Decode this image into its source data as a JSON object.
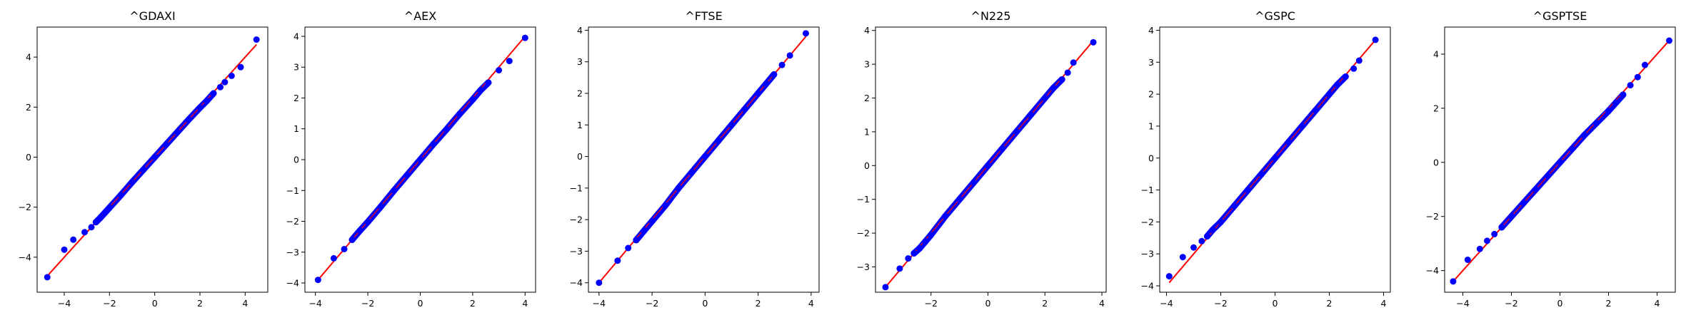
{
  "chart_data": [
    {
      "type": "scatter",
      "title": "^GDAXI",
      "xlim": [
        -5.2,
        5.0
      ],
      "ylim": [
        -5.4,
        5.2
      ],
      "xticks": [
        -4,
        -2,
        0,
        2,
        4
      ],
      "yticks": [
        -4,
        -2,
        0,
        2,
        4
      ],
      "xtick_labels": [
        "−4",
        "−2",
        "0",
        "2",
        "4"
      ],
      "ytick_labels": [
        "−4",
        "−2",
        "0",
        "2",
        "4"
      ],
      "reference_line": {
        "x": [
          -4.75,
          4.5
        ],
        "y": [
          -4.75,
          4.5
        ],
        "color": "#ff0000"
      },
      "points_color": "#0000ff",
      "points": [
        [
          -4.75,
          -4.8
        ],
        [
          -4.0,
          -3.7
        ],
        [
          -3.6,
          -3.3
        ],
        [
          -3.1,
          -3.0
        ],
        [
          -2.8,
          -2.8
        ],
        [
          -2.6,
          -2.6
        ],
        [
          -2.4,
          -2.42
        ],
        [
          -2.2,
          -2.22
        ],
        [
          -2.0,
          -2.02
        ],
        [
          -1.5,
          -1.52
        ],
        [
          -1.0,
          -1.0
        ],
        [
          -0.5,
          -0.5
        ],
        [
          0,
          0
        ],
        [
          0.5,
          0.5
        ],
        [
          1.0,
          1.0
        ],
        [
          1.5,
          1.5
        ],
        [
          2.0,
          1.98
        ],
        [
          2.3,
          2.25
        ],
        [
          2.6,
          2.55
        ],
        [
          2.9,
          2.8
        ],
        [
          3.1,
          3.0
        ],
        [
          3.4,
          3.25
        ],
        [
          3.8,
          3.6
        ],
        [
          4.5,
          4.7
        ]
      ]
    },
    {
      "type": "scatter",
      "title": "^AEX",
      "xlim": [
        -4.4,
        4.4
      ],
      "ylim": [
        -4.3,
        4.3
      ],
      "xticks": [
        -4,
        -2,
        0,
        2,
        4
      ],
      "yticks": [
        -4,
        -3,
        -2,
        -1,
        0,
        1,
        2,
        3,
        4
      ],
      "xtick_labels": [
        "−4",
        "−2",
        "0",
        "2",
        "4"
      ],
      "ytick_labels": [
        "−4",
        "−3",
        "−2",
        "−1",
        "0",
        "1",
        "2",
        "3",
        "4"
      ],
      "reference_line": {
        "x": [
          -3.9,
          4.0
        ],
        "y": [
          -3.9,
          4.0
        ],
        "color": "#ff0000"
      },
      "points_color": "#0000ff",
      "points": [
        [
          -3.9,
          -3.9
        ],
        [
          -3.3,
          -3.2
        ],
        [
          -2.9,
          -2.9
        ],
        [
          -2.6,
          -2.6
        ],
        [
          -2.3,
          -2.3
        ],
        [
          -2.0,
          -2.02
        ],
        [
          -1.5,
          -1.52
        ],
        [
          -1.0,
          -1.0
        ],
        [
          -0.5,
          -0.5
        ],
        [
          0,
          0
        ],
        [
          0.5,
          0.5
        ],
        [
          1.0,
          0.98
        ],
        [
          1.5,
          1.48
        ],
        [
          2.0,
          1.95
        ],
        [
          2.3,
          2.25
        ],
        [
          2.6,
          2.5
        ],
        [
          3.0,
          2.9
        ],
        [
          3.4,
          3.2
        ],
        [
          4.0,
          3.95
        ]
      ]
    },
    {
      "type": "scatter",
      "title": "^FTSE",
      "xlim": [
        -4.4,
        4.3
      ],
      "ylim": [
        -4.3,
        4.1
      ],
      "xticks": [
        -4,
        -2,
        0,
        2,
        4
      ],
      "yticks": [
        -4,
        -3,
        -2,
        -1,
        0,
        1,
        2,
        3,
        4
      ],
      "xtick_labels": [
        "−4",
        "−2",
        "0",
        "2",
        "4"
      ],
      "ytick_labels": [
        "−4",
        "−3",
        "−2",
        "−1",
        "0",
        "1",
        "2",
        "3",
        "4"
      ],
      "reference_line": {
        "x": [
          -4.0,
          3.8
        ],
        "y": [
          -4.0,
          3.8
        ],
        "color": "#ff0000"
      },
      "points_color": "#0000ff",
      "points": [
        [
          -4.0,
          -4.0
        ],
        [
          -3.3,
          -3.3
        ],
        [
          -2.9,
          -2.9
        ],
        [
          -2.6,
          -2.65
        ],
        [
          -2.3,
          -2.35
        ],
        [
          -2.0,
          -2.05
        ],
        [
          -1.5,
          -1.55
        ],
        [
          -1.0,
          -1.0
        ],
        [
          -0.5,
          -0.5
        ],
        [
          0,
          0
        ],
        [
          0.5,
          0.5
        ],
        [
          1.0,
          1.0
        ],
        [
          1.5,
          1.5
        ],
        [
          2.0,
          2.0
        ],
        [
          2.3,
          2.3
        ],
        [
          2.6,
          2.6
        ],
        [
          2.9,
          2.9
        ],
        [
          3.2,
          3.2
        ],
        [
          3.8,
          3.9
        ]
      ]
    },
    {
      "type": "scatter",
      "title": "^N225",
      "xlim": [
        -3.95,
        4.15
      ],
      "ylim": [
        -3.75,
        4.1
      ],
      "xticks": [
        -2,
        0,
        2,
        4
      ],
      "yticks": [
        -3,
        -2,
        -1,
        0,
        1,
        2,
        3,
        4
      ],
      "xtick_labels": [
        "−2",
        "0",
        "2",
        "4"
      ],
      "ytick_labels": [
        "−3",
        "−2",
        "−1",
        "0",
        "1",
        "2",
        "3",
        "4"
      ],
      "reference_line": {
        "x": [
          -3.6,
          3.7
        ],
        "y": [
          -3.6,
          3.7
        ],
        "color": "#ff0000"
      },
      "points_color": "#0000ff",
      "points": [
        [
          -3.6,
          -3.6
        ],
        [
          -3.1,
          -3.05
        ],
        [
          -2.8,
          -2.75
        ],
        [
          -2.6,
          -2.6
        ],
        [
          -2.4,
          -2.45
        ],
        [
          -2.2,
          -2.25
        ],
        [
          -2.0,
          -2.05
        ],
        [
          -1.5,
          -1.5
        ],
        [
          -1.0,
          -1.0
        ],
        [
          -0.5,
          -0.5
        ],
        [
          0,
          0
        ],
        [
          0.5,
          0.5
        ],
        [
          1.0,
          1.0
        ],
        [
          1.5,
          1.5
        ],
        [
          2.0,
          2.0
        ],
        [
          2.3,
          2.3
        ],
        [
          2.6,
          2.55
        ],
        [
          2.8,
          2.75
        ],
        [
          3.0,
          3.05
        ],
        [
          3.7,
          3.65
        ]
      ]
    },
    {
      "type": "scatter",
      "title": "^GSPC",
      "xlim": [
        -4.25,
        4.25
      ],
      "ylim": [
        -4.2,
        4.1
      ],
      "xticks": [
        -4,
        -2,
        0,
        2,
        4
      ],
      "yticks": [
        -4,
        -3,
        -2,
        -1,
        0,
        1,
        2,
        3,
        4
      ],
      "xtick_labels": [
        "−4",
        "−2",
        "0",
        "2",
        "4"
      ],
      "ytick_labels": [
        "−4",
        "−3",
        "−2",
        "−1",
        "0",
        "1",
        "2",
        "3",
        "4"
      ],
      "reference_line": {
        "x": [
          -3.9,
          3.7
        ],
        "y": [
          -3.9,
          3.7
        ],
        "color": "#ff0000"
      },
      "points_color": "#0000ff",
      "points": [
        [
          -3.9,
          -3.7
        ],
        [
          -3.4,
          -3.1
        ],
        [
          -3.0,
          -2.8
        ],
        [
          -2.7,
          -2.6
        ],
        [
          -2.5,
          -2.45
        ],
        [
          -2.3,
          -2.25
        ],
        [
          -2.0,
          -2.0
        ],
        [
          -1.5,
          -1.5
        ],
        [
          -1.0,
          -1.0
        ],
        [
          -0.5,
          -0.5
        ],
        [
          0,
          0
        ],
        [
          0.5,
          0.5
        ],
        [
          1.0,
          1.0
        ],
        [
          1.5,
          1.5
        ],
        [
          2.0,
          2.0
        ],
        [
          2.3,
          2.3
        ],
        [
          2.6,
          2.55
        ],
        [
          2.9,
          2.8
        ],
        [
          3.1,
          3.05
        ],
        [
          3.7,
          3.7
        ]
      ]
    },
    {
      "type": "scatter",
      "title": "^GSPTSE",
      "xlim": [
        -4.75,
        4.75
      ],
      "ylim": [
        -4.8,
        5.0
      ],
      "xticks": [
        -4,
        -2,
        0,
        2,
        4
      ],
      "yticks": [
        -4,
        -2,
        0,
        2,
        4
      ],
      "xtick_labels": [
        "−4",
        "−2",
        "0",
        "2",
        "4"
      ],
      "ytick_labels": [
        "−4",
        "−2",
        "0",
        "2",
        "4"
      ],
      "reference_line": {
        "x": [
          -4.4,
          4.5
        ],
        "y": [
          -4.4,
          4.5
        ],
        "color": "#ff0000"
      },
      "points_color": "#0000ff",
      "points": [
        [
          -4.4,
          -4.4
        ],
        [
          -3.8,
          -3.6
        ],
        [
          -3.3,
          -3.2
        ],
        [
          -3.0,
          -2.9
        ],
        [
          -2.7,
          -2.65
        ],
        [
          -2.4,
          -2.4
        ],
        [
          -2.0,
          -2.0
        ],
        [
          -1.5,
          -1.5
        ],
        [
          -1.0,
          -1.0
        ],
        [
          -0.5,
          -0.5
        ],
        [
          0,
          0
        ],
        [
          0.5,
          0.5
        ],
        [
          1.0,
          1.0
        ],
        [
          1.5,
          1.45
        ],
        [
          2.0,
          1.9
        ],
        [
          2.3,
          2.2
        ],
        [
          2.6,
          2.5
        ],
        [
          2.9,
          2.85
        ],
        [
          3.2,
          3.15
        ],
        [
          3.5,
          3.6
        ],
        [
          4.5,
          4.5
        ]
      ]
    }
  ]
}
